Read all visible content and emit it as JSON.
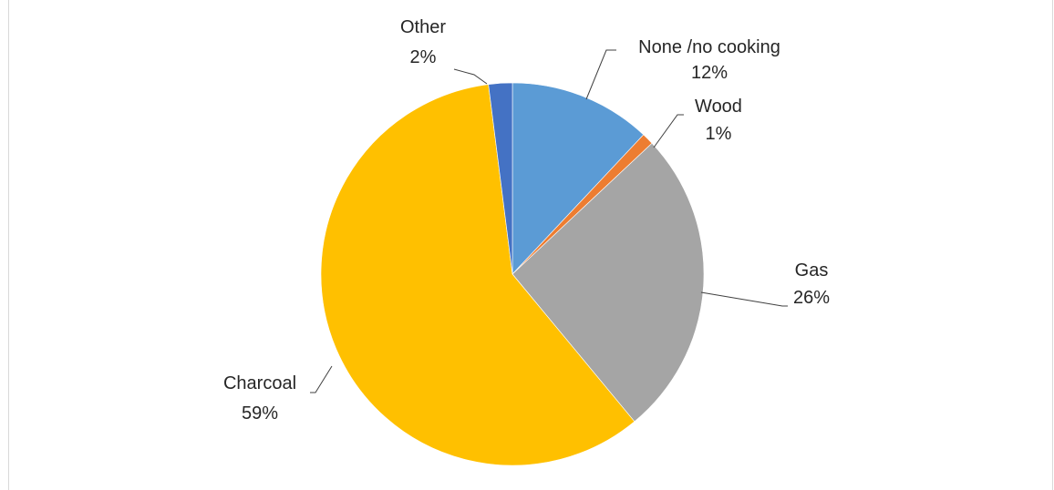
{
  "chart_data": {
    "type": "pie",
    "title": "",
    "slices": [
      {
        "label": "None /no cooking",
        "value": 12,
        "value_label": "12%",
        "color": "#5b9bd5"
      },
      {
        "label": "Wood",
        "value": 1,
        "value_label": "1%",
        "color": "#ed7d31"
      },
      {
        "label": "Gas",
        "value": 26,
        "value_label": "26%",
        "color": "#a5a5a5"
      },
      {
        "label": "Charcoal",
        "value": 59,
        "value_label": "59%",
        "color": "#ffc000"
      },
      {
        "label": "Other",
        "value": 2,
        "value_label": "2%",
        "color": "#4472c4"
      }
    ],
    "start_angle": "12 o'clock",
    "direction": "clockwise",
    "legend": "none",
    "data_labels": "category name and percentage, outside with leader lines"
  }
}
